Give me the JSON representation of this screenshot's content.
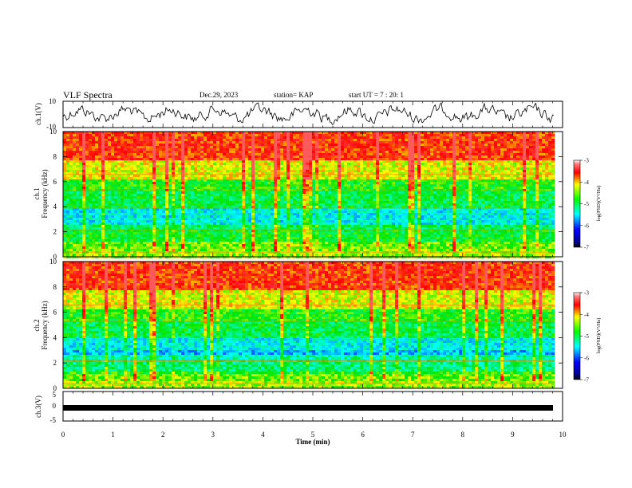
{
  "header": {
    "title": "VLF Spectra",
    "date": "Dec.29, 2023",
    "station": "station= KAP",
    "start_ut": "start  UT =  7 : 20: 1"
  },
  "chart_data": [
    {
      "id": "ch1_waveform",
      "type": "line",
      "ylabel": "ch.1(V)",
      "ylim": [
        -10,
        10
      ],
      "yticks": [
        "10",
        "-10"
      ],
      "x_range_min": [
        0,
        9.83
      ],
      "color": "#000000"
    },
    {
      "id": "ch1_spectrogram",
      "type": "heatmap",
      "ylabel": "ch.1\nFrequency (kHz)",
      "ylim": [
        0,
        10
      ],
      "yticks": [
        "0",
        "2",
        "4",
        "6",
        "8",
        "10"
      ],
      "x_range_min": [
        0,
        9.83
      ],
      "colorbar": {
        "label": "log(PSD)(V²/Hz)",
        "range": [
          -7,
          -3
        ],
        "ticks": [
          "-3",
          "-4",
          "-5",
          "-6",
          "-7"
        ]
      }
    },
    {
      "id": "ch2_spectrogram",
      "type": "heatmap",
      "ylabel": "ch.2\nFrequency (kHz)",
      "ylim": [
        0,
        10
      ],
      "yticks": [
        "0",
        "2",
        "4",
        "6",
        "8",
        "10"
      ],
      "x_range_min": [
        0,
        9.83
      ],
      "colorbar": {
        "label": "log(PSD)(V²/Hz)",
        "range": [
          -7,
          -3
        ],
        "ticks": [
          "-3",
          "-4",
          "-5",
          "-6",
          "-7"
        ]
      }
    },
    {
      "id": "ch3_waveform",
      "type": "line",
      "ylabel": "ch.3(V)",
      "ylim": [
        -5,
        5
      ],
      "yticks": [
        "5",
        "0",
        "-5"
      ],
      "x_range_min": [
        0,
        9.83
      ],
      "color": "#000000"
    }
  ],
  "x_axis": {
    "label": "Time (min)",
    "range": [
      0,
      10
    ],
    "ticks": [
      "0",
      "1",
      "2",
      "3",
      "4",
      "5",
      "6",
      "7",
      "8",
      "9",
      "10"
    ]
  }
}
